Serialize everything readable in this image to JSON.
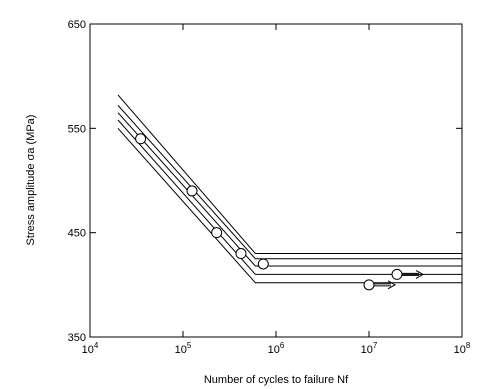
{
  "chart_data": {
    "type": "scatter",
    "title": "",
    "xlabel": "Number of cycles to failure  Nf",
    "ylabel": "Stress amplitude  σa (MPa)",
    "x_scale": "log",
    "xlim": [
      10000,
      100000000
    ],
    "ylim": [
      350,
      650
    ],
    "x_ticks": [
      {
        "base": "10",
        "exp": "4",
        "value": 10000
      },
      {
        "base": "10",
        "exp": "5",
        "value": 100000
      },
      {
        "base": "10",
        "exp": "6",
        "value": 1000000
      },
      {
        "base": "10",
        "exp": "7",
        "value": 10000000
      },
      {
        "base": "10",
        "exp": "8",
        "value": 100000000
      }
    ],
    "y_ticks": [
      {
        "label": "350",
        "value": 350
      },
      {
        "label": "450",
        "value": 450
      },
      {
        "label": "550",
        "value": 550
      },
      {
        "label": "650",
        "value": 650
      }
    ],
    "grid": false,
    "points": [
      {
        "x": 35000,
        "y": 540,
        "runout": false
      },
      {
        "x": 125000,
        "y": 490,
        "runout": false
      },
      {
        "x": 230000,
        "y": 450,
        "runout": false
      },
      {
        "x": 420000,
        "y": 430,
        "runout": false
      },
      {
        "x": 730000,
        "y": 420,
        "runout": false
      },
      {
        "x": 10000000,
        "y": 400,
        "runout": true
      },
      {
        "x": 20000000,
        "y": 410,
        "runout": true
      }
    ],
    "band_lines": [
      {
        "knee_x": 600000,
        "knee_y": 430,
        "start_x": 20000,
        "start_y": 582
      },
      {
        "knee_x": 600000,
        "knee_y": 425,
        "start_x": 20000,
        "start_y": 572
      },
      {
        "knee_x": 600000,
        "knee_y": 418,
        "start_x": 20000,
        "start_y": 565
      },
      {
        "knee_x": 600000,
        "knee_y": 410,
        "start_x": 20000,
        "start_y": 558
      },
      {
        "knee_x": 600000,
        "knee_y": 402,
        "start_x": 20000,
        "start_y": 550
      }
    ]
  }
}
